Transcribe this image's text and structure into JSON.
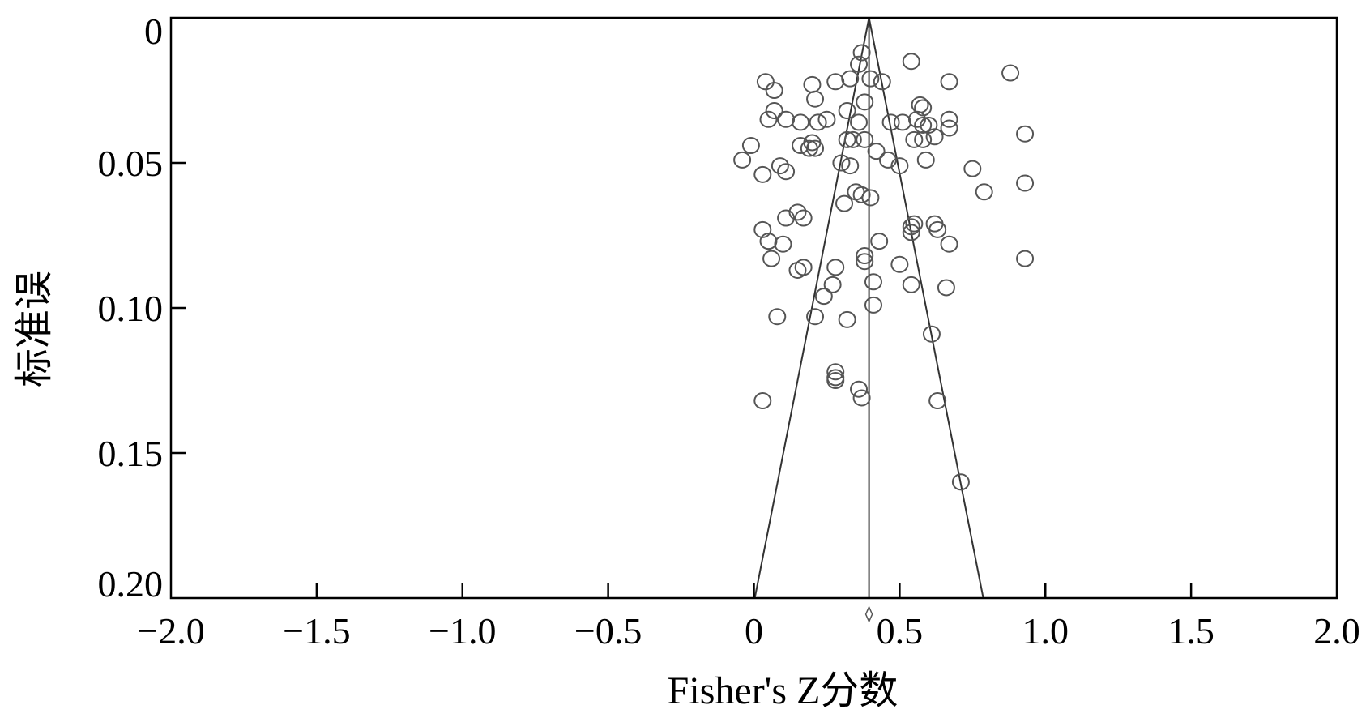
{
  "chart_data": {
    "type": "scatter",
    "subtype": "funnel-plot",
    "xlabel": "Fisher's Z分数",
    "ylabel": "标准误",
    "xlim": [
      -2.0,
      2.0
    ],
    "ylim": [
      0,
      0.2
    ],
    "y_axis_inverted": true,
    "xticks": [
      "−2.0",
      "−1.5",
      "−1.0",
      "−0.5",
      "0",
      "0.5",
      "1.0",
      "1.5",
      "2.0"
    ],
    "yticks": [
      "0",
      "0.05",
      "0.10",
      "0.15",
      "0.20"
    ],
    "grid": false,
    "summary_effect": 0.395,
    "funnel": {
      "apex": [
        0.395,
        0
      ],
      "left_base": [
        0.003,
        0.2
      ],
      "right_base": [
        0.787,
        0.2
      ]
    },
    "points": [
      [
        0.37,
        0.012
      ],
      [
        0.54,
        0.015
      ],
      [
        0.36,
        0.016
      ],
      [
        0.88,
        0.019
      ],
      [
        0.04,
        0.022
      ],
      [
        0.2,
        0.023
      ],
      [
        0.28,
        0.022
      ],
      [
        0.33,
        0.021
      ],
      [
        0.4,
        0.021
      ],
      [
        0.44,
        0.022
      ],
      [
        0.67,
        0.022
      ],
      [
        0.07,
        0.025
      ],
      [
        0.21,
        0.028
      ],
      [
        0.38,
        0.029
      ],
      [
        0.07,
        0.032
      ],
      [
        0.32,
        0.032
      ],
      [
        0.57,
        0.03
      ],
      [
        0.58,
        0.031
      ],
      [
        0.05,
        0.035
      ],
      [
        0.11,
        0.035
      ],
      [
        0.16,
        0.036
      ],
      [
        0.22,
        0.036
      ],
      [
        0.25,
        0.035
      ],
      [
        0.36,
        0.036
      ],
      [
        0.47,
        0.036
      ],
      [
        0.51,
        0.036
      ],
      [
        0.56,
        0.035
      ],
      [
        0.6,
        0.037
      ],
      [
        0.67,
        0.035
      ],
      [
        0.58,
        0.037
      ],
      [
        0.67,
        0.038
      ],
      [
        0.93,
        0.04
      ],
      [
        -0.01,
        0.044
      ],
      [
        0.16,
        0.044
      ],
      [
        0.19,
        0.045
      ],
      [
        0.21,
        0.045
      ],
      [
        0.2,
        0.043
      ],
      [
        0.32,
        0.042
      ],
      [
        0.34,
        0.042
      ],
      [
        0.38,
        0.042
      ],
      [
        0.42,
        0.046
      ],
      [
        0.55,
        0.042
      ],
      [
        0.58,
        0.042
      ],
      [
        0.62,
        0.041
      ],
      [
        -0.04,
        0.049
      ],
      [
        0.09,
        0.051
      ],
      [
        0.3,
        0.05
      ],
      [
        0.33,
        0.051
      ],
      [
        0.46,
        0.049
      ],
      [
        0.5,
        0.051
      ],
      [
        0.59,
        0.049
      ],
      [
        0.75,
        0.052
      ],
      [
        0.03,
        0.054
      ],
      [
        0.11,
        0.053
      ],
      [
        0.79,
        0.06
      ],
      [
        0.93,
        0.057
      ],
      [
        0.35,
        0.06
      ],
      [
        0.37,
        0.061
      ],
      [
        0.31,
        0.064
      ],
      [
        0.4,
        0.062
      ],
      [
        0.15,
        0.067
      ],
      [
        0.11,
        0.069
      ],
      [
        0.17,
        0.069
      ],
      [
        0.54,
        0.072
      ],
      [
        0.55,
        0.071
      ],
      [
        0.62,
        0.071
      ],
      [
        0.63,
        0.073
      ],
      [
        0.03,
        0.073
      ],
      [
        0.54,
        0.074
      ],
      [
        0.05,
        0.077
      ],
      [
        0.1,
        0.078
      ],
      [
        0.43,
        0.077
      ],
      [
        0.67,
        0.078
      ],
      [
        0.06,
        0.083
      ],
      [
        0.38,
        0.082
      ],
      [
        0.38,
        0.084
      ],
      [
        0.5,
        0.085
      ],
      [
        0.93,
        0.083
      ],
      [
        0.15,
        0.087
      ],
      [
        0.17,
        0.086
      ],
      [
        0.28,
        0.086
      ],
      [
        0.27,
        0.092
      ],
      [
        0.41,
        0.091
      ],
      [
        0.54,
        0.092
      ],
      [
        0.66,
        0.093
      ],
      [
        0.24,
        0.096
      ],
      [
        0.41,
        0.099
      ],
      [
        0.08,
        0.103
      ],
      [
        0.21,
        0.103
      ],
      [
        0.32,
        0.104
      ],
      [
        0.61,
        0.109
      ],
      [
        0.28,
        0.122
      ],
      [
        0.28,
        0.124
      ],
      [
        0.28,
        0.125
      ],
      [
        0.36,
        0.128
      ],
      [
        0.37,
        0.131
      ],
      [
        0.03,
        0.132
      ],
      [
        0.63,
        0.132
      ],
      [
        0.71,
        0.16
      ]
    ]
  }
}
